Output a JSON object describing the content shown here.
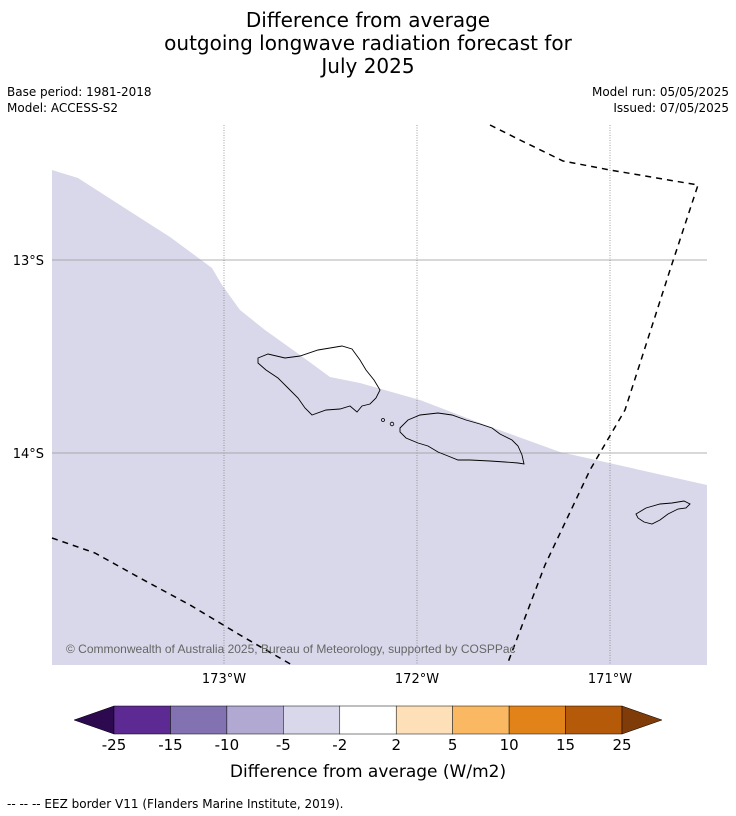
{
  "title": {
    "line1": "Difference from average",
    "line2": "outgoing longwave radiation forecast for",
    "line3": "July 2025"
  },
  "info": {
    "base_period": "Base period: 1981-2018",
    "model": "Model: ACCESS-S2",
    "model_run": "Model run: 05/05/2025",
    "issued": "Issued: 07/05/2025"
  },
  "map": {
    "lat_labels": [
      "13°S",
      "14°S"
    ],
    "lon_labels": [
      "173°W",
      "172°W",
      "171°W"
    ],
    "copyright": "© Commonwealth of Australia 2025, Bureau of Meteorology, supported by COSPPac",
    "shade_color": "#d8d8ea"
  },
  "colorbar": {
    "title": "Difference from average (W/m2)",
    "ticks": [
      "-25",
      "-15",
      "-10",
      "-5",
      "-2",
      "2",
      "5",
      "10",
      "15",
      "25"
    ],
    "colors": [
      "#5d2a93",
      "#8372b1",
      "#b1a9d2",
      "#d8d8ea",
      "#ffffff",
      "#fde0b7",
      "#fbb863",
      "#e2831a",
      "#b45a09"
    ],
    "under_color": "#2d0a4f",
    "over_color": "#7f3b08"
  },
  "footer": {
    "legend": "--  --  -- EEZ border V11 (Flanders Marine Institute, 2019)."
  }
}
